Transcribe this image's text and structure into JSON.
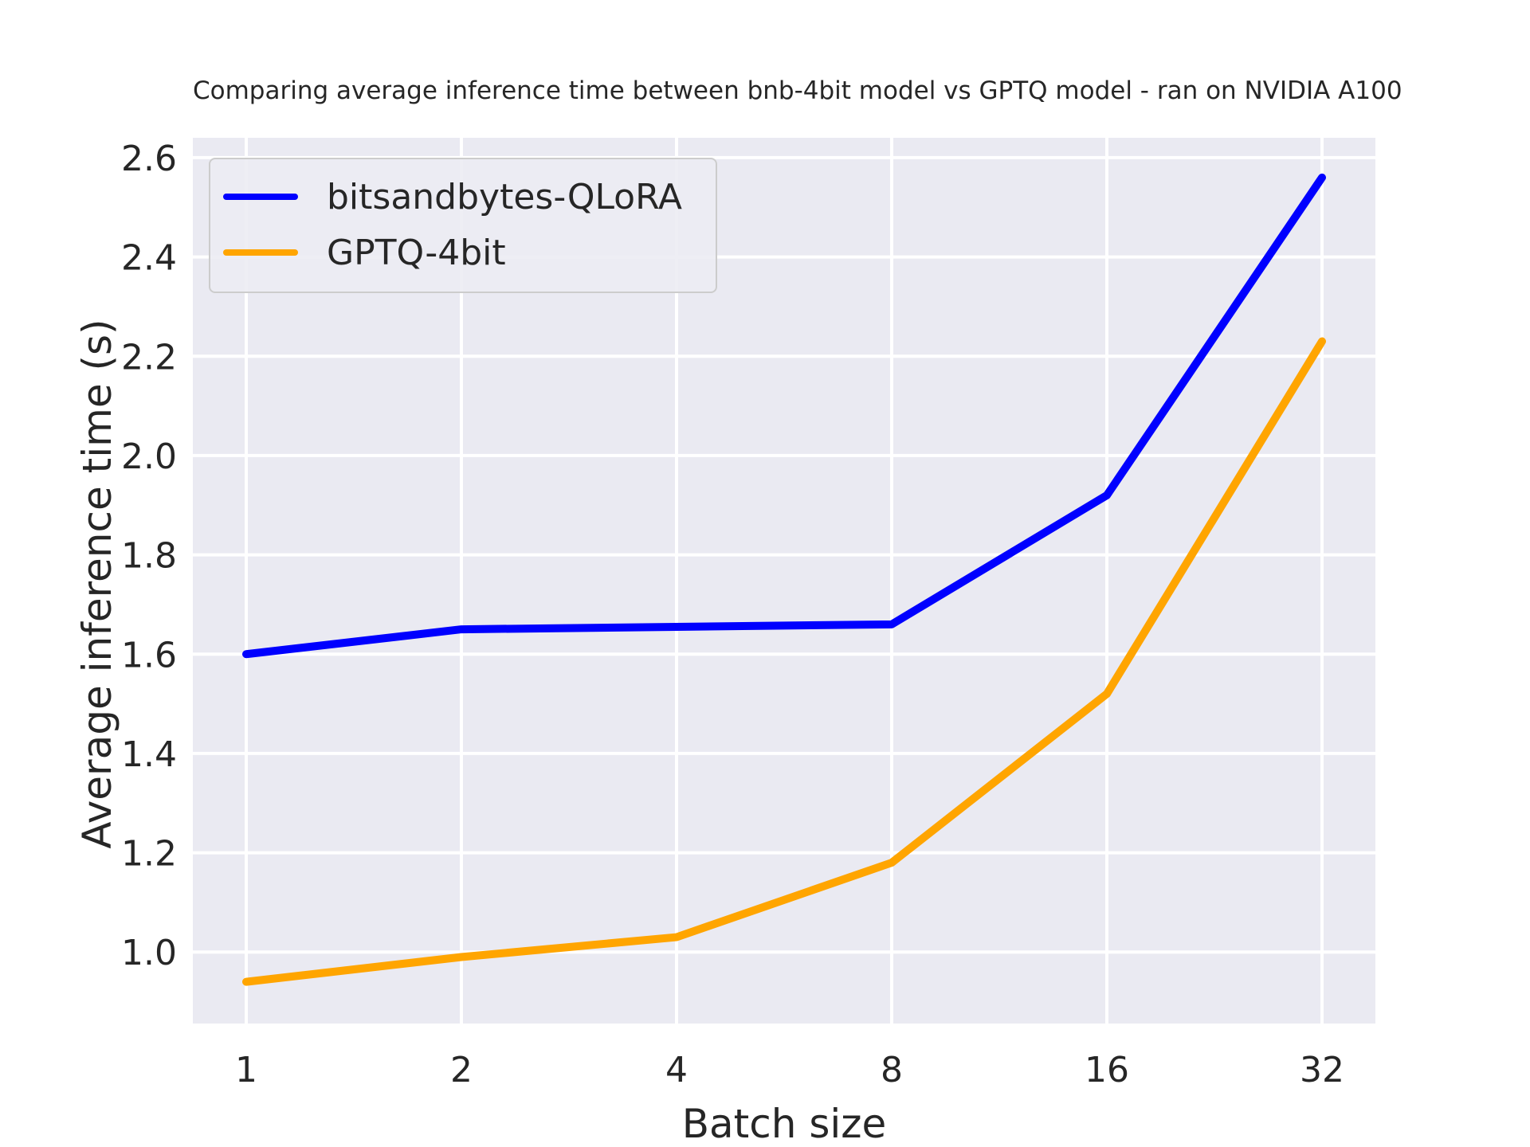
{
  "title": "Comparing average inference time between bnb-4bit model vs GPTQ model - ran on NVIDIA A100",
  "colors": {
    "figure_bg": "#ffffff",
    "axes_bg": "#eaeaf2",
    "grid": "#ffffff",
    "text": "#262626",
    "legend_bg": "#ececf3",
    "legend_border": "#cccccc",
    "series_blue": "#0000ff",
    "series_orange": "#ffa500"
  },
  "legend": {
    "position": "upper left",
    "items": [
      {
        "label": "bitsandbytes-QLoRA",
        "color": "#0000ff"
      },
      {
        "label": "GPTQ-4bit",
        "color": "#ffa500"
      }
    ]
  },
  "chart_data": {
    "type": "line",
    "title": "Comparing average inference time between bnb-4bit model vs GPTQ model - ran on NVIDIA A100",
    "xlabel": "Batch size",
    "ylabel": "Average inference time (s)",
    "categories": [
      1,
      2,
      4,
      8,
      16,
      32
    ],
    "x_scale": "categories equally spaced (log2-like)",
    "series": [
      {
        "name": "bitsandbytes-QLoRA",
        "color": "#0000ff",
        "values": [
          1.6,
          1.65,
          1.655,
          1.66,
          1.92,
          2.56
        ]
      },
      {
        "name": "GPTQ-4bit",
        "color": "#ffa500",
        "values": [
          0.94,
          0.99,
          1.03,
          1.18,
          1.52,
          2.23
        ]
      }
    ],
    "yticks": [
      1.0,
      1.2,
      1.4,
      1.6,
      1.8,
      2.0,
      2.2,
      2.4,
      2.6
    ],
    "ylim": [
      0.856,
      2.64
    ],
    "grid": true,
    "legend_position": "upper left"
  }
}
